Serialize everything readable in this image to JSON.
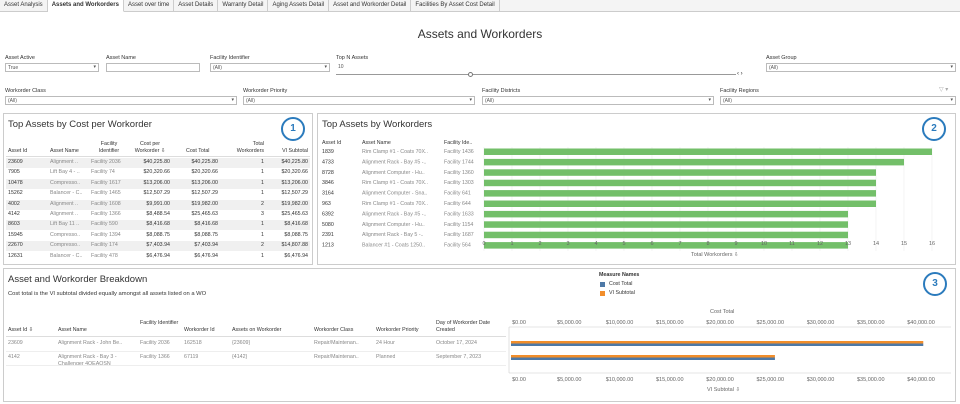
{
  "tabs": [
    "Asset Analysis",
    "Assets and Workorders",
    "Asset over time",
    "Asset Details",
    "Warranty Detail",
    "Aging Assets Detail",
    "Asset and Workorder Detail",
    "Facilities By Asset Cost Detail"
  ],
  "title": "Assets and Workorders",
  "filters": {
    "asset_active": {
      "label": "Asset Active",
      "value": "True"
    },
    "asset_name": {
      "label": "Asset Name",
      "value": ""
    },
    "facility_identifier": {
      "label": "Facility Identifier",
      "value": "(All)"
    },
    "top_n": {
      "label": "Top N Assets",
      "value": "10"
    },
    "asset_group": {
      "label": "Asset Group",
      "value": "(All)"
    },
    "workorder_class": {
      "label": "Workorder Class",
      "value": "(All)"
    },
    "workorder_priority": {
      "label": "Workorder Priority",
      "value": "(All)"
    },
    "facility_districts": {
      "label": "Facility Districts",
      "value": "(All)"
    },
    "facility_regions": {
      "label": "Facility Regions",
      "value": "(All)"
    }
  },
  "panel1": {
    "title": "Top Assets by Cost per Workorder",
    "badge": "1",
    "headers": {
      "asset_id": "Asset Id",
      "asset_name": "Asset Name",
      "facility": "Facility Identifier",
      "cost_per": "Cost per Workorder",
      "cost_total": "Cost Total",
      "total_wo": "Total Workorders",
      "vi": "VI Subtotal"
    },
    "rows": [
      {
        "id": "23609",
        "name": "Alignment ..",
        "fac": "Facility 2036",
        "cpw": "$40,225.80",
        "ct": "$40,225.80",
        "tw": "1",
        "vi": "$40,225.80"
      },
      {
        "id": "7905",
        "name": "Lift Bay 4 - ..",
        "fac": "Facility 74",
        "cpw": "$20,320.66",
        "ct": "$20,320.66",
        "tw": "1",
        "vi": "$20,320.66"
      },
      {
        "id": "10478",
        "name": "Compresso..",
        "fac": "Facility 1617",
        "cpw": "$13,206.00",
        "ct": "$13,206.00",
        "tw": "1",
        "vi": "$13,206.00"
      },
      {
        "id": "15262",
        "name": "Balancer - C..",
        "fac": "Facility 1465",
        "cpw": "$12,507.29",
        "ct": "$12,507.29",
        "tw": "1",
        "vi": "$12,507.29"
      },
      {
        "id": "4002",
        "name": "Alignment ..",
        "fac": "Facility 1608",
        "cpw": "$9,991.00",
        "ct": "$19,982.00",
        "tw": "2",
        "vi": "$19,982.00"
      },
      {
        "id": "4142",
        "name": "Alignment ..",
        "fac": "Facility 1366",
        "cpw": "$8,488.54",
        "ct": "$25,465.63",
        "tw": "3",
        "vi": "$25,465.63"
      },
      {
        "id": "8603",
        "name": "Lift Bay 11 ..",
        "fac": "Facility 590",
        "cpw": "$8,416.68",
        "ct": "$8,416.68",
        "tw": "1",
        "vi": "$8,416.68"
      },
      {
        "id": "15945",
        "name": "Compresso..",
        "fac": "Facility 1394",
        "cpw": "$8,088.75",
        "ct": "$8,088.75",
        "tw": "1",
        "vi": "$8,088.75"
      },
      {
        "id": "22670",
        "name": "Compresso..",
        "fac": "Facility 174",
        "cpw": "$7,403.94",
        "ct": "$7,403.94",
        "tw": "2",
        "vi": "$14,807.88"
      },
      {
        "id": "12631",
        "name": "Balancer - C..",
        "fac": "Facility 478",
        "cpw": "$6,476.94",
        "ct": "$6,476.94",
        "tw": "1",
        "vi": "$6,476.94"
      }
    ]
  },
  "panel2": {
    "title": "Top Assets by Workorders",
    "badge": "2",
    "headers": {
      "asset_id": "Asset Id",
      "asset_name": "Asset Name",
      "facility": "Facility Ide.."
    },
    "axis_title": "Total Workorders",
    "ticks": [
      "0",
      "1",
      "2",
      "3",
      "4",
      "5",
      "6",
      "7",
      "8",
      "9",
      "10",
      "11",
      "12",
      "13",
      "14",
      "15",
      "16"
    ],
    "bar_color": "#73bf69"
  },
  "chart_data": {
    "type": "bar",
    "orientation": "horizontal",
    "title": "Top Assets by Workorders",
    "xlabel": "Total Workorders",
    "xlim": [
      0,
      16.5
    ],
    "rows": [
      {
        "id": "1839",
        "name": "Rim Clamp #1 - Coats 70X..",
        "fac": "Facility 1436",
        "value": 16
      },
      {
        "id": "4733",
        "name": "Alignment Rack - Bay #5 -..",
        "fac": "Facility 1744",
        "value": 15
      },
      {
        "id": "8728",
        "name": "Alignment Computer - Hu..",
        "fac": "Facility 1360",
        "value": 14
      },
      {
        "id": "3846",
        "name": "Rim Clamp #1 - Coats 70X..",
        "fac": "Facility 1303",
        "value": 14
      },
      {
        "id": "3164",
        "name": "Alignment Computer - Sna..",
        "fac": "Facility 641",
        "value": 14
      },
      {
        "id": "963",
        "name": "Rim Clamp #1 - Coats 70X..",
        "fac": "Facility 644",
        "value": 14
      },
      {
        "id": "6392",
        "name": "Alignment Rack - Bay #5 -..",
        "fac": "Facility 1633",
        "value": 13
      },
      {
        "id": "5080",
        "name": "Alignment Computer - Hu..",
        "fac": "Facility 1154",
        "value": 13
      },
      {
        "id": "2391",
        "name": "Alignment Rack - Bay 5 -..",
        "fac": "Facility 1687",
        "value": 13
      },
      {
        "id": "1213",
        "name": "Balancer #1 - Coats 1250..",
        "fac": "Facility 564",
        "value": 13
      }
    ]
  },
  "panel3": {
    "title": "Asset and Workorder Breakdown",
    "subtitle": "Cost total is the VI subtotal divided equally amongst all assets listed on a WO",
    "badge": "3",
    "legend_title": "Measure Names",
    "legend": [
      {
        "name": "Cost Total",
        "color": "#4e79a7"
      },
      {
        "name": "VI Subtotal",
        "color": "#f28e2b"
      }
    ],
    "headers": {
      "asset_id": "Asset Id",
      "asset_name": "Asset Name",
      "facility": "Facility Identifier",
      "wo_id": "Workorder Id",
      "assets_on": "Assets on Workorder",
      "wo_class": "Workorder Class",
      "wo_priority": "Workorder Priority",
      "day_created": "Day of Workorder Date Created"
    },
    "axis_top": "Cost Total",
    "axis_bottom": "VI Subtotal",
    "ticks": [
      "$0.00",
      "$5,000.00",
      "$10,000.00",
      "$15,000.00",
      "$20,000.00",
      "$25,000.00",
      "$30,000.00",
      "$35,000.00",
      "$40,000.00"
    ],
    "rows": [
      {
        "id": "23609",
        "name": "Alignment Rack - John Be..",
        "fac": "Facility 2036",
        "wo": "162518",
        "assets": "{23609}",
        "cls": "Repair/Maintenan..",
        "pri": "24 Hour",
        "date": "October 17, 2024",
        "cost_total": 40225.8,
        "vi_subtotal": 40225.8
      },
      {
        "id": "4142",
        "name": "Alignment Rack - Bay 3 - Challenger 4OEAOSN",
        "fac": "Facility 1366",
        "wo": "67119",
        "assets": "{4142}",
        "cls": "Repair/Maintenan..",
        "pri": "Planned",
        "date": "September 7, 2023",
        "cost_total": 25465.63,
        "vi_subtotal": 25465.63
      }
    ]
  }
}
